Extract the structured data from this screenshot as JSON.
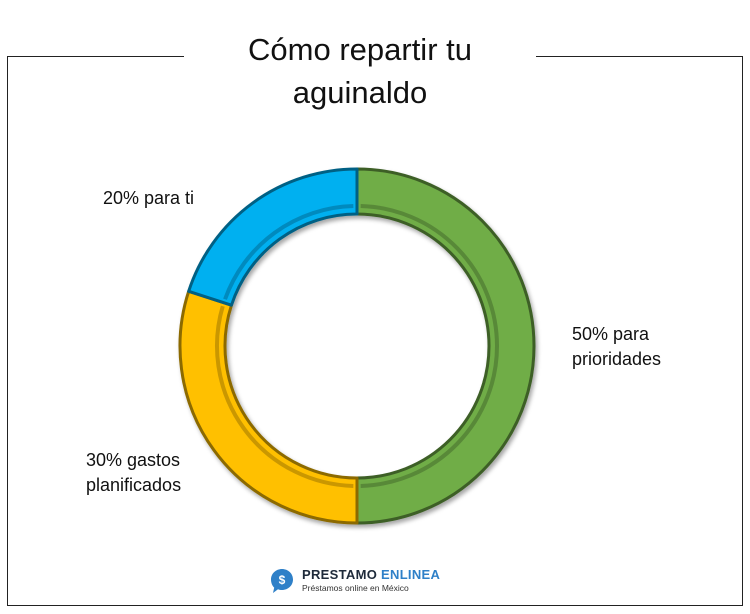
{
  "chart_data": {
    "type": "pie",
    "variant": "donut",
    "title": "Cómo repartir tu aguinaldo",
    "slices": [
      {
        "label": "50% para prioridades",
        "value": 50,
        "color": "#70ad47"
      },
      {
        "label": "30% gastos planificados",
        "value": 30,
        "color": "#ffc000"
      },
      {
        "label": "20% para ti",
        "value": 20,
        "color": "#00b0f0"
      }
    ]
  },
  "labels": {
    "green": "50% para prioridades",
    "yellow": "30% gastos planificados",
    "blue": "20% para ti"
  },
  "logo": {
    "brand_part1": "PRESTAMO",
    "brand_part2": "ENLINEA",
    "tagline": "Préstamos online en México",
    "icon_symbol": "$",
    "icon_color": "#2f80c8"
  }
}
